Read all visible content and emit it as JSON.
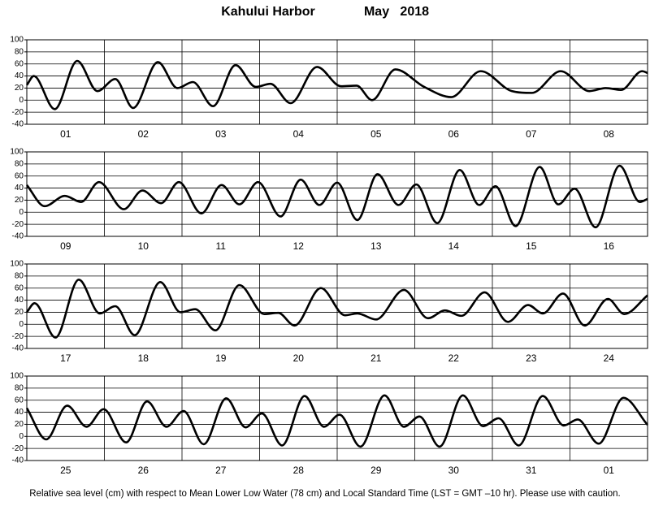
{
  "title": "Kahului Harbor",
  "subtitle": "May   2018",
  "footnote": "Relative sea level (cm) with respect to Mean Lower Low Water (78 cm) and Local Standard Time (LST = GMT –10 hr). Please use with caution.",
  "chart_data": [
    {
      "type": "line",
      "color": "#000000",
      "grid": true,
      "categories": [
        "01",
        "02",
        "03",
        "04",
        "05",
        "06",
        "07",
        "08"
      ],
      "xlim": [
        0,
        8
      ],
      "ylim": [
        -40,
        100
      ],
      "yticks": [
        -40,
        -20,
        0,
        20,
        40,
        60,
        80,
        100
      ],
      "x": [
        0,
        0.09,
        0.36,
        0.65,
        0.91,
        1.14,
        1.37,
        1.69,
        1.94,
        2.14,
        2.4,
        2.69,
        2.95,
        3.14,
        3.4,
        3.74,
        4.05,
        4.25,
        4.45,
        4.75,
        5.12,
        5.47,
        5.85,
        6.25,
        6.51,
        6.88,
        7.25,
        7.46,
        7.66,
        7.93,
        8.0
      ],
      "values": [
        25,
        40,
        -15,
        65,
        15,
        35,
        -13,
        63,
        20,
        30,
        -10,
        58,
        22,
        27,
        -5,
        55,
        23,
        24,
        0,
        51,
        22,
        5,
        48,
        15,
        12,
        48,
        15,
        20,
        17,
        48,
        45
      ]
    },
    {
      "type": "line",
      "color": "#000000",
      "grid": true,
      "categories": [
        "09",
        "10",
        "11",
        "12",
        "13",
        "14",
        "15",
        "16"
      ],
      "xlim": [
        0,
        8
      ],
      "ylim": [
        -40,
        100
      ],
      "yticks": [
        -40,
        -20,
        0,
        20,
        40,
        60,
        80,
        100
      ],
      "x": [
        0,
        0.23,
        0.49,
        0.7,
        0.93,
        1.25,
        1.49,
        1.73,
        1.96,
        2.25,
        2.51,
        2.74,
        2.98,
        3.27,
        3.53,
        3.77,
        4.0,
        4.26,
        4.52,
        4.79,
        5.02,
        5.29,
        5.58,
        5.83,
        6.04,
        6.3,
        6.61,
        6.85,
        7.06,
        7.33,
        7.64,
        7.9,
        8.0
      ],
      "values": [
        45,
        10,
        27,
        17,
        50,
        5,
        36,
        15,
        50,
        -2,
        45,
        13,
        50,
        -7,
        54,
        12,
        49,
        -13,
        63,
        12,
        46,
        -18,
        70,
        12,
        43,
        -23,
        75,
        13,
        39,
        -25,
        77,
        17,
        22
      ]
    },
    {
      "type": "line",
      "color": "#000000",
      "grid": true,
      "categories": [
        "17",
        "18",
        "19",
        "20",
        "21",
        "22",
        "23",
        "24"
      ],
      "xlim": [
        0,
        8
      ],
      "ylim": [
        -40,
        100
      ],
      "yticks": [
        -40,
        -20,
        0,
        20,
        40,
        60,
        80,
        100
      ],
      "x": [
        0,
        0.1,
        0.37,
        0.67,
        0.94,
        1.14,
        1.39,
        1.72,
        1.98,
        2.17,
        2.43,
        2.74,
        3.06,
        3.24,
        3.45,
        3.79,
        4.1,
        4.26,
        4.5,
        4.86,
        5.17,
        5.39,
        5.6,
        5.9,
        6.2,
        6.46,
        6.65,
        6.91,
        7.19,
        7.49,
        7.7,
        8.0
      ],
      "values": [
        20,
        35,
        -22,
        74,
        18,
        30,
        -18,
        70,
        20,
        25,
        -10,
        65,
        17,
        19,
        -2,
        60,
        15,
        18,
        8,
        57,
        10,
        23,
        14,
        53,
        4,
        32,
        18,
        51,
        -2,
        42,
        17,
        48
      ]
    },
    {
      "type": "line",
      "color": "#000000",
      "grid": true,
      "categories": [
        "25",
        "26",
        "27",
        "28",
        "29",
        "30",
        "31",
        "01"
      ],
      "xlim": [
        0,
        8
      ],
      "ylim": [
        -40,
        100
      ],
      "yticks": [
        -40,
        -20,
        0,
        20,
        40,
        60,
        80,
        100
      ],
      "x": [
        0,
        0.25,
        0.52,
        0.77,
        0.99,
        1.28,
        1.55,
        1.8,
        2.02,
        2.28,
        2.57,
        2.82,
        3.03,
        3.29,
        3.58,
        3.83,
        4.03,
        4.3,
        4.61,
        4.86,
        5.06,
        5.32,
        5.62,
        5.88,
        6.08,
        6.34,
        6.65,
        6.92,
        7.1,
        7.37,
        7.69,
        8.0
      ],
      "values": [
        47,
        -5,
        51,
        16,
        45,
        -10,
        58,
        16,
        42,
        -13,
        63,
        15,
        38,
        -15,
        67,
        16,
        36,
        -17,
        68,
        16,
        33,
        -17,
        68,
        17,
        30,
        -15,
        67,
        18,
        28,
        -12,
        64,
        19
      ]
    }
  ]
}
